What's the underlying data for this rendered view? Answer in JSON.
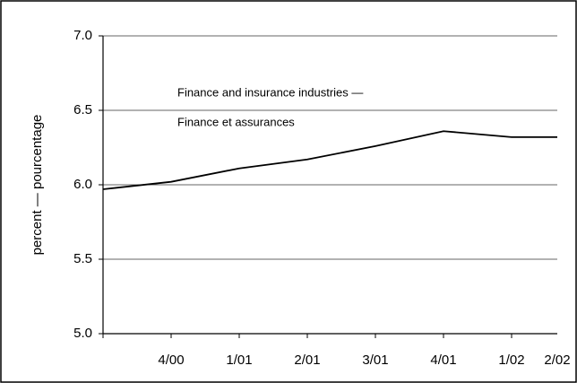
{
  "chart_data": {
    "type": "line",
    "y_label": "percent — pourcentage",
    "annotation": [
      "Finance and insurance industries —",
      "Finance et assurances"
    ],
    "categories": [
      null,
      "4/00",
      "1/01",
      "2/01",
      "3/01",
      "4/01",
      "1/02",
      "2/02"
    ],
    "series": [
      {
        "name": "Finance and insurance industries",
        "color": "#000000",
        "values": [
          5.97,
          6.02,
          6.11,
          6.17,
          6.26,
          6.36,
          6.32,
          6.32
        ]
      }
    ],
    "ylim": [
      5.0,
      7.0
    ],
    "yticks": [
      {
        "value": 5.0,
        "label": "5.0"
      },
      {
        "value": 5.5,
        "label": "5.5"
      },
      {
        "value": 6.0,
        "label": "6.0"
      },
      {
        "value": 6.5,
        "label": "6.5"
      },
      {
        "value": 7.0,
        "label": "7.0"
      }
    ],
    "grid": true
  }
}
